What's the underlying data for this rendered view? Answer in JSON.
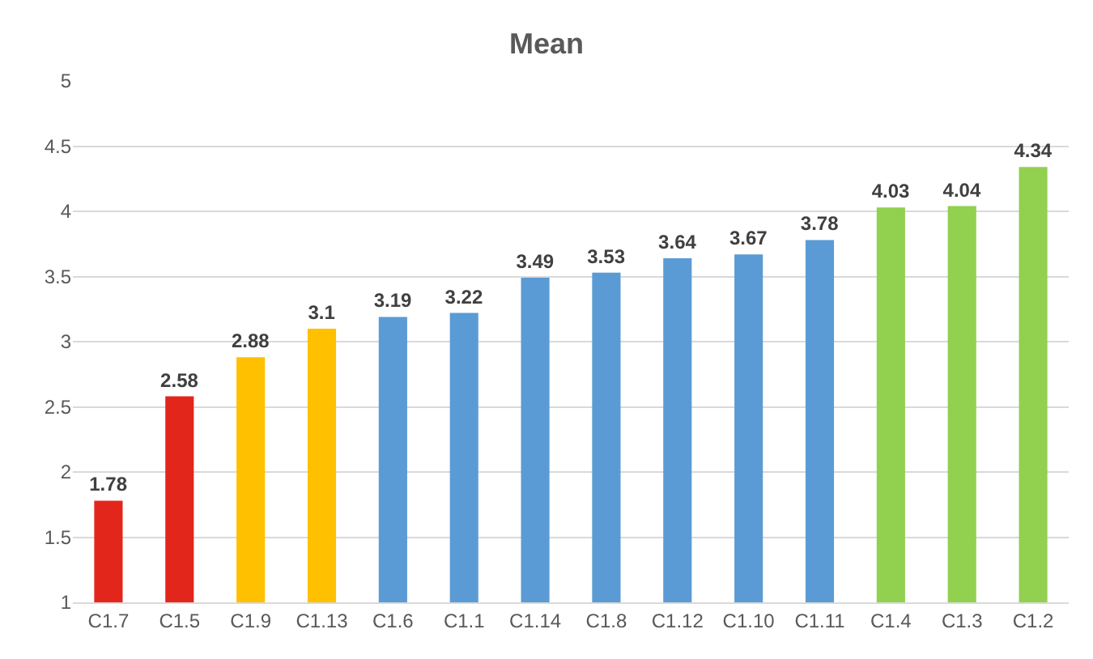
{
  "chart_data": {
    "type": "bar",
    "title": "Mean",
    "categories": [
      "C1.7",
      "C1.5",
      "C1.9",
      "C1.13",
      "C1.6",
      "C1.1",
      "C1.14",
      "C1.8",
      "C1.12",
      "C1.10",
      "C1.11",
      "C1.4",
      "C1.3",
      "C1.2"
    ],
    "values": [
      1.78,
      2.58,
      2.88,
      3.1,
      3.19,
      3.22,
      3.49,
      3.53,
      3.64,
      3.67,
      3.78,
      4.03,
      4.04,
      4.34
    ],
    "colors": [
      "#e3261c",
      "#e3261c",
      "#ffc000",
      "#ffc000",
      "#5b9bd5",
      "#5b9bd5",
      "#5b9bd5",
      "#5b9bd5",
      "#5b9bd5",
      "#5b9bd5",
      "#5b9bd5",
      "#92d050",
      "#92d050",
      "#92d050"
    ],
    "ylim": [
      1,
      5
    ],
    "yticks": [
      1,
      1.5,
      2,
      2.5,
      3,
      3.5,
      4,
      4.5,
      5
    ],
    "grid": "y",
    "data_labels": true
  }
}
